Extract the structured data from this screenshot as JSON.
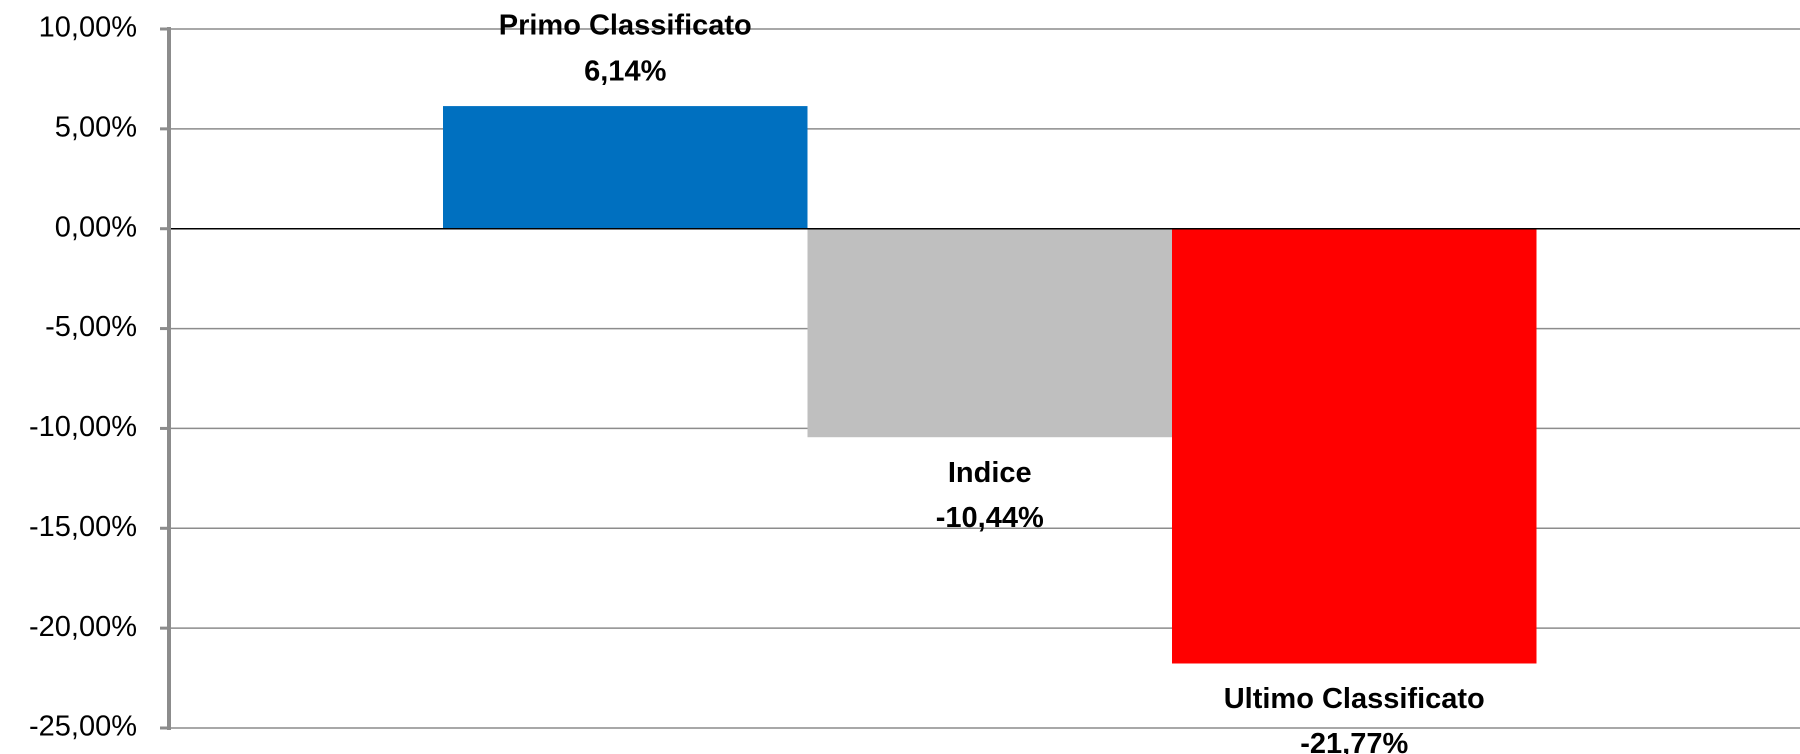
{
  "chart_data": {
    "type": "bar",
    "categories": [
      "Primo Classificato",
      "Indice",
      "Ultimo Classificato"
    ],
    "values": [
      6.14,
      -10.44,
      -21.77
    ],
    "value_labels": [
      "6,14%",
      "-10,44%",
      "-21,77%"
    ],
    "colors": [
      "#0070c0",
      "#bfbfbf",
      "#ff0000"
    ],
    "ylim": [
      -25,
      10
    ],
    "yticks": [
      {
        "value": -25,
        "label": "-25,00%"
      },
      {
        "value": -20,
        "label": "-20,00%"
      },
      {
        "value": -15,
        "label": "-15,00%"
      },
      {
        "value": -10,
        "label": "-10,00%"
      },
      {
        "value": -5,
        "label": "-5,00%"
      },
      {
        "value": 0,
        "label": "0,00%"
      },
      {
        "value": 5,
        "label": "5,00%"
      },
      {
        "value": 10,
        "label": "10,00%"
      }
    ],
    "grid": true
  }
}
